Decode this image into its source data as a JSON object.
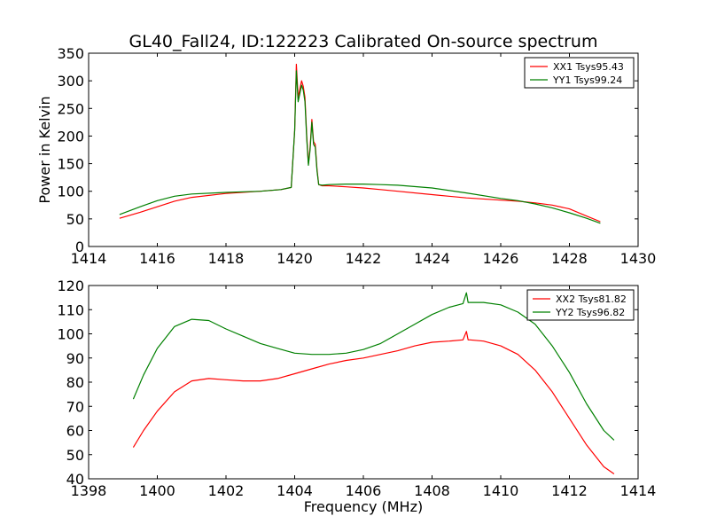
{
  "figure": {
    "title": "GL40_Fall24, ID:122223 Calibrated On-source spectrum",
    "ylabel_top": "Power in Kelvin",
    "xlabel_bottom": "Frequency (MHz)"
  },
  "chart_data": [
    {
      "type": "line",
      "title": "GL40_Fall24, ID:122223 Calibrated On-source spectrum",
      "xlabel": "",
      "ylabel": "Power in Kelvin",
      "xlim": [
        1414,
        1430
      ],
      "ylim": [
        0,
        350
      ],
      "xticks": [
        "1414",
        "1416",
        "1418",
        "1420",
        "1422",
        "1424",
        "1426",
        "1428",
        "1430"
      ],
      "yticks": [
        "0",
        "50",
        "100",
        "150",
        "200",
        "250",
        "300",
        "350"
      ],
      "grid": false,
      "legend": "top-right",
      "series": [
        {
          "name": "XX1 Tsys95.43",
          "color": "#ff0000",
          "x": [
            1414.9,
            1415.5,
            1416.0,
            1416.5,
            1417.0,
            1418.0,
            1419.0,
            1419.6,
            1419.9,
            1420.0,
            1420.05,
            1420.1,
            1420.2,
            1420.25,
            1420.3,
            1420.35,
            1420.4,
            1420.45,
            1420.5,
            1420.55,
            1420.6,
            1420.65,
            1420.7,
            1420.8,
            1421.0,
            1421.5,
            1422.0,
            1422.5,
            1423.0,
            1424.0,
            1425.0,
            1426.0,
            1426.5,
            1427.0,
            1427.5,
            1428.0,
            1428.5,
            1428.9
          ],
          "y": [
            51,
            62,
            72,
            82,
            89,
            96,
            100,
            103,
            107,
            210,
            330,
            270,
            300,
            290,
            270,
            200,
            150,
            180,
            230,
            190,
            185,
            140,
            112,
            110,
            110,
            108,
            106,
            103,
            100,
            94,
            88,
            84,
            82,
            79,
            75,
            68,
            55,
            45
          ]
        },
        {
          "name": "YY1 Tsys99.24",
          "color": "#008000",
          "x": [
            1414.9,
            1415.5,
            1416.0,
            1416.5,
            1417.0,
            1418.0,
            1419.0,
            1419.6,
            1419.9,
            1420.0,
            1420.05,
            1420.1,
            1420.2,
            1420.25,
            1420.3,
            1420.35,
            1420.4,
            1420.45,
            1420.5,
            1420.55,
            1420.6,
            1420.65,
            1420.7,
            1420.8,
            1421.0,
            1421.5,
            1422.0,
            1422.5,
            1423.0,
            1424.0,
            1425.0,
            1426.0,
            1426.5,
            1427.0,
            1427.5,
            1428.0,
            1428.5,
            1428.9
          ],
          "y": [
            58,
            72,
            83,
            91,
            95,
            98,
            100,
            103,
            107,
            210,
            318,
            262,
            292,
            283,
            262,
            195,
            147,
            175,
            225,
            185,
            180,
            137,
            112,
            111,
            112,
            113,
            113,
            112,
            111,
            106,
            97,
            87,
            83,
            77,
            70,
            61,
            51,
            42
          ]
        }
      ]
    },
    {
      "type": "line",
      "title": "",
      "xlabel": "Frequency (MHz)",
      "ylabel": "",
      "xlim": [
        1398,
        1414
      ],
      "ylim": [
        40,
        120
      ],
      "xticks": [
        "1398",
        "1400",
        "1402",
        "1404",
        "1406",
        "1408",
        "1410",
        "1412",
        "1414"
      ],
      "yticks": [
        "40",
        "50",
        "60",
        "70",
        "80",
        "90",
        "100",
        "110",
        "120"
      ],
      "grid": false,
      "legend": "top-right",
      "series": [
        {
          "name": "XX2 Tsys81.82",
          "color": "#ff0000",
          "x": [
            1399.3,
            1399.6,
            1400.0,
            1400.5,
            1401.0,
            1401.5,
            1402.0,
            1402.5,
            1403.0,
            1403.5,
            1404.0,
            1404.5,
            1405.0,
            1405.5,
            1406.0,
            1406.5,
            1407.0,
            1407.5,
            1408.0,
            1408.5,
            1408.9,
            1409.0,
            1409.05,
            1409.1,
            1409.5,
            1410.0,
            1410.5,
            1411.0,
            1411.5,
            1412.0,
            1412.5,
            1413.0,
            1413.3
          ],
          "y": [
            53,
            60,
            68,
            76,
            80.5,
            81.5,
            81,
            80.5,
            80.5,
            81.5,
            83.5,
            85.5,
            87.5,
            89,
            90,
            91.5,
            93,
            95,
            96.5,
            97,
            97.5,
            101,
            97.5,
            97.5,
            97,
            95,
            91.5,
            85,
            76,
            65,
            54,
            45,
            42
          ]
        },
        {
          "name": "YY2 Tsys96.82",
          "color": "#008000",
          "x": [
            1399.3,
            1399.6,
            1400.0,
            1400.5,
            1401.0,
            1401.5,
            1402.0,
            1402.5,
            1403.0,
            1403.5,
            1404.0,
            1404.5,
            1405.0,
            1405.5,
            1406.0,
            1406.5,
            1407.0,
            1407.5,
            1408.0,
            1408.5,
            1408.9,
            1409.0,
            1409.05,
            1409.1,
            1409.5,
            1410.0,
            1410.5,
            1411.0,
            1411.5,
            1412.0,
            1412.5,
            1413.0,
            1413.3
          ],
          "y": [
            73,
            83,
            94,
            103,
            106,
            105.5,
            102,
            99,
            96,
            94,
            92,
            91.5,
            91.5,
            92,
            93.5,
            96,
            100,
            104,
            108,
            111,
            112.5,
            117,
            113,
            113,
            113,
            112,
            109,
            104,
            95,
            84,
            71,
            60,
            56
          ]
        }
      ]
    }
  ]
}
